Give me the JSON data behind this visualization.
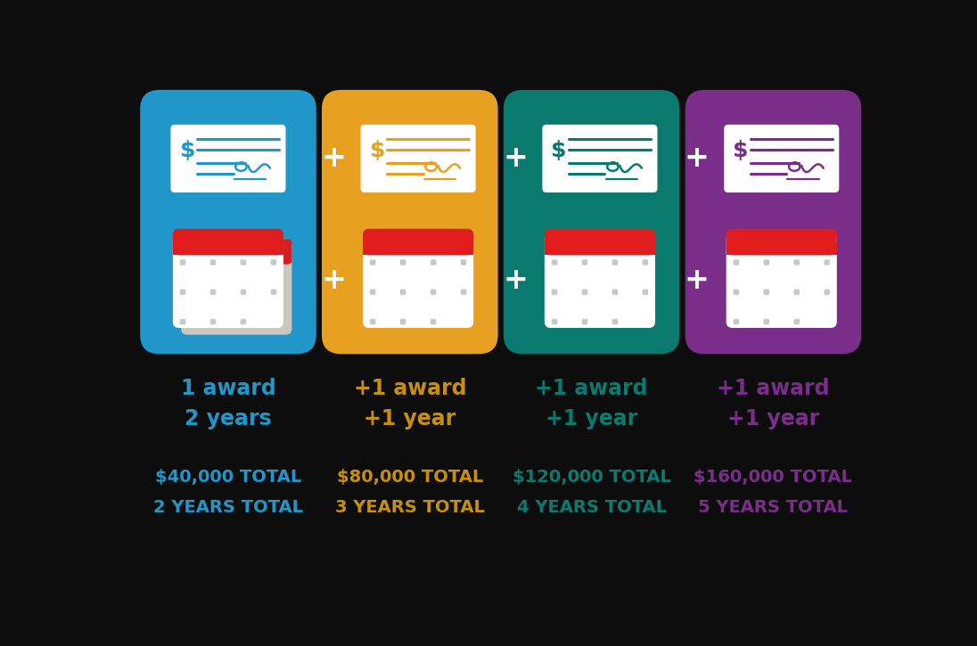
{
  "bg_color": "#0d0d0d",
  "columns": [
    {
      "bg_color": "#2196c8",
      "label_line1": "1 award",
      "label_line2": "2 years",
      "total_money": "$40,000 TOTAL",
      "total_years": "2 YEARS TOTAL",
      "text_color": "#2196c8",
      "check_color": "#2196c8",
      "has_shadow_cal": true,
      "plus_inside": false
    },
    {
      "bg_color": "#e8a020",
      "label_line1": "+1 award",
      "label_line2": "+1 year",
      "total_money": "$80,000 TOTAL",
      "total_years": "3 YEARS TOTAL",
      "text_color": "#c8900a",
      "check_color": "#e8a020",
      "has_shadow_cal": false,
      "plus_inside": true
    },
    {
      "bg_color": "#0a7a6e",
      "label_line1": "+1 award",
      "label_line2": "+1 year",
      "total_money": "$120,000 TOTAL",
      "total_years": "4 YEARS TOTAL",
      "text_color": "#0a7a6e",
      "check_color": "#0a7a6e",
      "has_shadow_cal": false,
      "plus_inside": true
    },
    {
      "bg_color": "#7a2e8a",
      "label_line1": "+1 award",
      "label_line2": "+1 year",
      "total_money": "$160,000 TOTAL",
      "total_years": "5 YEARS TOTAL",
      "text_color": "#7a2e8a",
      "check_color": "#7a2e8a",
      "has_shadow_cal": false,
      "plus_inside": true
    }
  ]
}
